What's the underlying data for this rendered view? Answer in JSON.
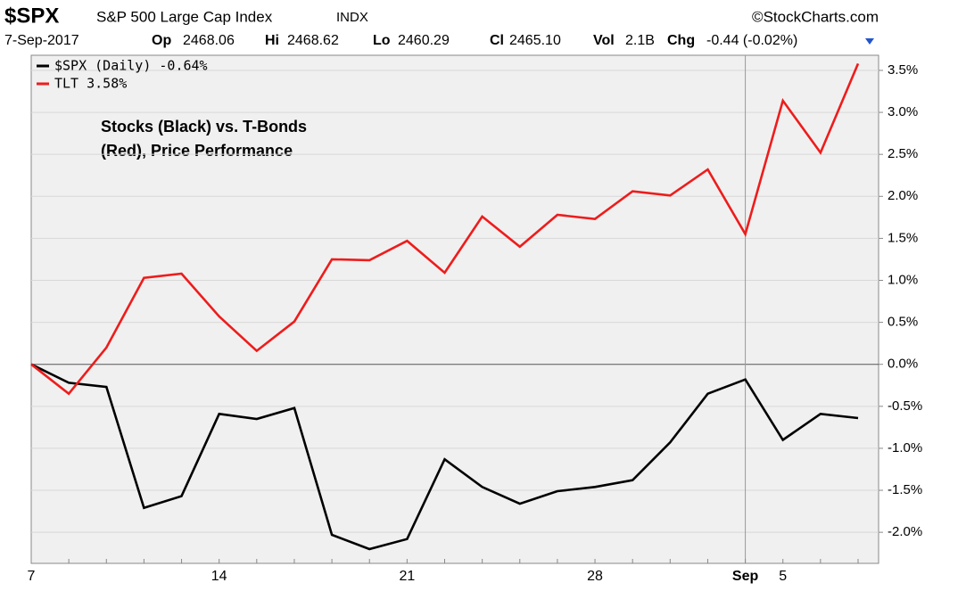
{
  "chart_data": {
    "type": "line",
    "title": "$SPX",
    "subtitle": "S&P 500 Large Cap Index",
    "exchange": "INDX",
    "source": "©StockCharts.com",
    "date": "7-Sep-2017",
    "quote": [
      {
        "label": "Op",
        "value": "2468.06"
      },
      {
        "label": "Hi",
        "value": "2468.62"
      },
      {
        "label": "Lo",
        "value": "2460.29"
      },
      {
        "label": "Cl",
        "value": "2465.10"
      },
      {
        "label": "Vol",
        "value": "2.1B"
      },
      {
        "label": "Chg",
        "value": "-0.44 (-0.02%)"
      }
    ],
    "annotation": [
      "Stocks (Black) vs. T-Bonds",
      "(Red), Price Performance"
    ],
    "categories": [
      "7",
      null,
      null,
      null,
      null,
      "14",
      null,
      null,
      null,
      null,
      "21",
      null,
      null,
      null,
      null,
      "28",
      null,
      null,
      null,
      "Sep",
      "5",
      null,
      null
    ],
    "series": [
      {
        "name": "$SPX (Daily) -0.64%",
        "color": "#000000",
        "values": [
          0,
          -0.22,
          -0.27,
          -1.71,
          -1.57,
          -0.59,
          -0.65,
          -0.52,
          -2.03,
          -2.2,
          -2.08,
          -1.13,
          -1.46,
          -1.66,
          -1.51,
          -1.46,
          -1.38,
          -0.93,
          -0.35,
          -0.18,
          -0.9,
          -0.59,
          -0.64
        ]
      },
      {
        "name": "TLT 3.58%",
        "color": "#ee1c1c",
        "values": [
          0,
          -0.35,
          0.2,
          1.03,
          1.08,
          0.57,
          0.16,
          0.51,
          1.25,
          1.24,
          1.47,
          1.09,
          1.76,
          1.4,
          1.78,
          1.73,
          2.06,
          2.01,
          2.32,
          1.55,
          3.14,
          2.52,
          3.58
        ]
      }
    ],
    "ylim": [
      -2.37,
      3.68
    ],
    "yticks": [
      {
        "value": 3.5,
        "label": "3.5%"
      },
      {
        "value": 3,
        "label": "3.0%"
      },
      {
        "value": 2.5,
        "label": "2.5%"
      },
      {
        "value": 2,
        "label": "2.0%"
      },
      {
        "value": 1.5,
        "label": "1.5%"
      },
      {
        "value": 1,
        "label": "1.0%"
      },
      {
        "value": 0.5,
        "label": "0.5%"
      },
      {
        "value": 0,
        "label": "0.0%"
      },
      {
        "value": -0.5,
        "label": "-0.5%"
      },
      {
        "value": -1,
        "label": "-1.0%"
      },
      {
        "value": -1.5,
        "label": "-1.5%"
      },
      {
        "value": -2,
        "label": "-2.0%"
      }
    ],
    "grid": true,
    "xgrid_at": [
      19
    ],
    "legend": "upper left"
  }
}
